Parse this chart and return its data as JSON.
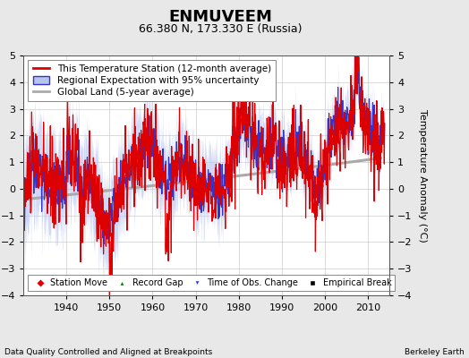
{
  "title": "ENMUVEEM",
  "subtitle": "66.380 N, 173.330 E (Russia)",
  "ylabel": "Temperature Anomaly (°C)",
  "xlabel_bottom": "Data Quality Controlled and Aligned at Breakpoints",
  "xlabel_bottomright": "Berkeley Earth",
  "ylim": [
    -4,
    5
  ],
  "yticks": [
    -4,
    -3,
    -2,
    -1,
    0,
    1,
    2,
    3,
    4,
    5
  ],
  "xlim": [
    1930,
    2015
  ],
  "xticks": [
    1940,
    1950,
    1960,
    1970,
    1980,
    1990,
    2000,
    2010
  ],
  "bg_color": "#e8e8e8",
  "plot_bg_color": "#ffffff",
  "grid_color": "#cccccc",
  "red_line_color": "#dd0000",
  "blue_line_color": "#3333cc",
  "blue_fill_color": "#b8c4f0",
  "gray_line_color": "#aaaaaa",
  "legend1_labels": [
    "This Temperature Station (12-month average)",
    "Regional Expectation with 95% uncertainty",
    "Global Land (5-year average)"
  ],
  "legend2_labels": [
    "Station Move",
    "Record Gap",
    "Time of Obs. Change",
    "Empirical Break"
  ],
  "legend2_colors": [
    "#dd0000",
    "#007700",
    "#3333cc",
    "#000000"
  ],
  "legend2_markers": [
    "D",
    "^",
    "v",
    "s"
  ],
  "title_fontsize": 13,
  "subtitle_fontsize": 9,
  "tick_fontsize": 8,
  "legend_fontsize": 7.5
}
